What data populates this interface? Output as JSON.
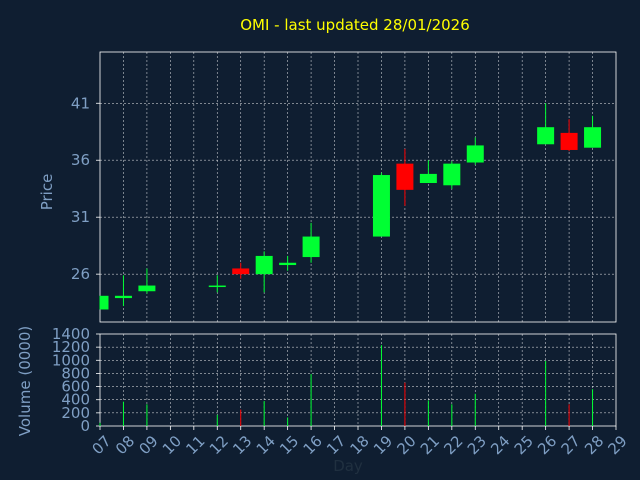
{
  "chart_data": [
    {
      "type": "candlestick",
      "title": "OMI - last updated 28/01/2026",
      "xlabel": "Day",
      "ylabel": "Price",
      "ylim": [
        21.8,
        45.5
      ],
      "yticks": [
        26,
        31,
        36,
        41
      ],
      "categories": [
        "07",
        "08",
        "09",
        "10",
        "11",
        "12",
        "13",
        "14",
        "15",
        "16",
        "17",
        "18",
        "19",
        "20",
        "21",
        "22",
        "23",
        "24",
        "25",
        "26",
        "27",
        "28",
        "29"
      ],
      "grid": true,
      "series": [
        {
          "x": "07",
          "open": 22.9,
          "close": 24.1,
          "high": 24.1,
          "low": 22.9,
          "color": "#00ff33"
        },
        {
          "x": "08",
          "open": 23.9,
          "close": 24.1,
          "high": 25.9,
          "low": 23.2,
          "color": "#00ff33"
        },
        {
          "x": "09",
          "open": 24.5,
          "close": 25.0,
          "high": 26.5,
          "low": 24.3,
          "color": "#00ff33"
        },
        {
          "x": "12",
          "open": 24.9,
          "close": 25.0,
          "high": 25.9,
          "low": 24.4,
          "color": "#00ff33"
        },
        {
          "x": "13",
          "open": 26.5,
          "close": 26.0,
          "high": 27.0,
          "low": 25.6,
          "color": "#ff0000"
        },
        {
          "x": "14",
          "open": 26.0,
          "close": 27.6,
          "high": 28.0,
          "low": 24.4,
          "color": "#00ff33"
        },
        {
          "x": "15",
          "open": 26.8,
          "close": 27.0,
          "high": 27.6,
          "low": 26.3,
          "color": "#00ff33"
        },
        {
          "x": "16",
          "open": 27.5,
          "close": 29.3,
          "high": 30.5,
          "low": 27.0,
          "color": "#00ff33"
        },
        {
          "x": "19",
          "open": 29.3,
          "close": 34.7,
          "high": 34.9,
          "low": 29.3,
          "color": "#00ff33"
        },
        {
          "x": "20",
          "open": 35.7,
          "close": 33.4,
          "high": 37.0,
          "low": 32.0,
          "color": "#ff0000"
        },
        {
          "x": "21",
          "open": 34.0,
          "close": 34.8,
          "high": 36.0,
          "low": 34.0,
          "color": "#00ff33"
        },
        {
          "x": "22",
          "open": 33.8,
          "close": 35.7,
          "high": 35.9,
          "low": 33.5,
          "color": "#00ff33"
        },
        {
          "x": "23",
          "open": 35.8,
          "close": 37.3,
          "high": 38.0,
          "low": 35.6,
          "color": "#00ff33"
        },
        {
          "x": "26",
          "open": 37.4,
          "close": 38.9,
          "high": 41.0,
          "low": 37.4,
          "color": "#00ff33"
        },
        {
          "x": "27",
          "open": 38.4,
          "close": 36.9,
          "high": 39.6,
          "low": 36.8,
          "color": "#ff0000"
        },
        {
          "x": "28",
          "open": 37.1,
          "close": 38.9,
          "high": 39.9,
          "low": 37.1,
          "color": "#00ff33"
        }
      ]
    },
    {
      "type": "bar",
      "xlabel": "Day",
      "ylabel": "Volume (0000)",
      "ylim": [
        0,
        1400
      ],
      "yticks": [
        0,
        200,
        400,
        600,
        800,
        1000,
        1200,
        1400
      ],
      "categories": [
        "07",
        "08",
        "09",
        "10",
        "11",
        "12",
        "13",
        "14",
        "15",
        "16",
        "17",
        "18",
        "19",
        "20",
        "21",
        "22",
        "23",
        "24",
        "25",
        "26",
        "27",
        "28",
        "29"
      ],
      "grid": true,
      "values": [
        {
          "x": "07",
          "value": 50,
          "color": "#00ff33"
        },
        {
          "x": "08",
          "value": 370,
          "color": "#00ff33"
        },
        {
          "x": "09",
          "value": 330,
          "color": "#00ff33"
        },
        {
          "x": "12",
          "value": 170,
          "color": "#00ff33"
        },
        {
          "x": "13",
          "value": 250,
          "color": "#ff0000"
        },
        {
          "x": "14",
          "value": 380,
          "color": "#00ff33"
        },
        {
          "x": "15",
          "value": 130,
          "color": "#00ff33"
        },
        {
          "x": "16",
          "value": 790,
          "color": "#00ff33"
        },
        {
          "x": "19",
          "value": 1230,
          "color": "#00ff33"
        },
        {
          "x": "20",
          "value": 660,
          "color": "#ff0000"
        },
        {
          "x": "21",
          "value": 390,
          "color": "#00ff33"
        },
        {
          "x": "22",
          "value": 330,
          "color": "#00ff33"
        },
        {
          "x": "23",
          "value": 490,
          "color": "#00ff33"
        },
        {
          "x": "26",
          "value": 990,
          "color": "#00ff33"
        },
        {
          "x": "27",
          "value": 330,
          "color": "#ff0000"
        },
        {
          "x": "28",
          "value": 560,
          "color": "#00ff33"
        }
      ]
    }
  ]
}
